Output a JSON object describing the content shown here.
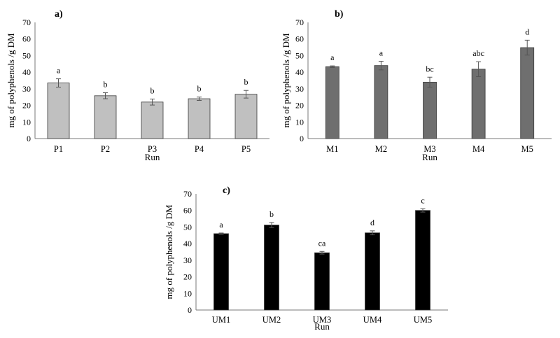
{
  "chart_data": [
    {
      "type": "bar",
      "panel_label": "a)",
      "categories": [
        "P1",
        "P2",
        "P3",
        "P4",
        "P5"
      ],
      "values": [
        33.5,
        25.8,
        22.0,
        24.0,
        26.7
      ],
      "errors": [
        2.5,
        1.8,
        1.8,
        1.0,
        2.3
      ],
      "significance": [
        "a",
        "b",
        "b",
        "b",
        "b"
      ],
      "xlabel": "Run",
      "ylabel": "mg of polyphenols /g DM",
      "ylim": [
        0,
        70
      ],
      "yticks": [
        0,
        10,
        20,
        30,
        40,
        50,
        60,
        70
      ],
      "bar_color": "#c0c0c0",
      "grid": false
    },
    {
      "type": "bar",
      "panel_label": "b)",
      "categories": [
        "M1",
        "M2",
        "M3",
        "M4",
        "M5"
      ],
      "values": [
        43.3,
        44.0,
        34.0,
        41.8,
        54.8
      ],
      "errors": [
        0.5,
        2.6,
        3.0,
        4.5,
        4.5
      ],
      "significance": [
        "a",
        "a",
        "bc",
        "abc",
        "d"
      ],
      "xlabel": "Run",
      "ylabel": "mg of polyphenols /g DM",
      "ylim": [
        0,
        70
      ],
      "yticks": [
        0,
        10,
        20,
        30,
        40,
        50,
        60,
        70
      ],
      "bar_color": "#6f6f6f",
      "grid": false
    },
    {
      "type": "bar",
      "panel_label": "c)",
      "categories": [
        "UM1",
        "UM2",
        "UM3",
        "UM4",
        "UM5"
      ],
      "values": [
        46.0,
        51.2,
        34.5,
        46.5,
        60.0
      ],
      "errors": [
        0.4,
        1.5,
        0.8,
        1.2,
        1.0
      ],
      "significance": [
        "a",
        "b",
        "ca",
        "d",
        "c"
      ],
      "xlabel": "Run",
      "ylabel": "mg of polyphenols /g DM",
      "ylim": [
        0,
        70
      ],
      "yticks": [
        0,
        10,
        20,
        30,
        40,
        50,
        60,
        70
      ],
      "bar_color": "#000000",
      "grid": false
    }
  ]
}
